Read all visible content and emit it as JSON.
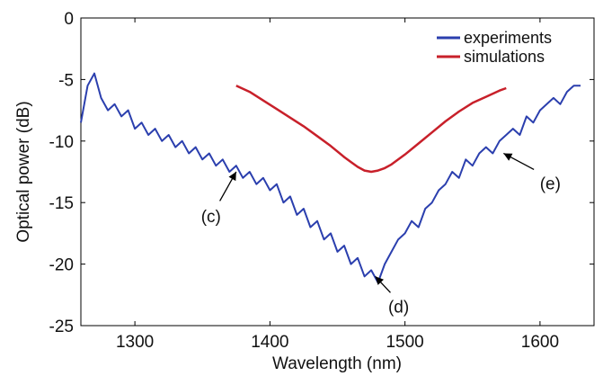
{
  "chart_data": {
    "type": "line",
    "xlabel": "Wavelength (nm)",
    "ylabel": "Optical power (dB)",
    "xlim": [
      1260,
      1640
    ],
    "ylim": [
      -25,
      0
    ],
    "xticks": [
      1300,
      1400,
      1500,
      1600
    ],
    "yticks": [
      0,
      -5,
      -10,
      -15,
      -20,
      -25
    ],
    "grid": false,
    "legend_position": "top-right",
    "series": [
      {
        "name": "experiments",
        "color": "#2b3fae",
        "x": [
          1260,
          1265,
          1270,
          1275,
          1280,
          1285,
          1290,
          1295,
          1300,
          1305,
          1310,
          1315,
          1320,
          1325,
          1330,
          1335,
          1340,
          1345,
          1350,
          1355,
          1360,
          1365,
          1370,
          1375,
          1380,
          1385,
          1390,
          1395,
          1400,
          1405,
          1410,
          1415,
          1420,
          1425,
          1430,
          1435,
          1440,
          1445,
          1450,
          1455,
          1460,
          1465,
          1470,
          1475,
          1480,
          1485,
          1490,
          1495,
          1500,
          1505,
          1510,
          1515,
          1520,
          1525,
          1530,
          1535,
          1540,
          1545,
          1550,
          1555,
          1560,
          1565,
          1570,
          1575,
          1580,
          1585,
          1590,
          1595,
          1600,
          1605,
          1610,
          1615,
          1620,
          1625,
          1630
        ],
        "y": [
          -8.5,
          -5.5,
          -4.5,
          -6.5,
          -7.5,
          -7,
          -8,
          -7.5,
          -9,
          -8.5,
          -9.5,
          -9,
          -10,
          -9.5,
          -10.5,
          -10,
          -11,
          -10.5,
          -11.5,
          -11,
          -12,
          -11.5,
          -12.5,
          -12,
          -13,
          -12.5,
          -13.5,
          -13,
          -14,
          -13.5,
          -15,
          -14.5,
          -16,
          -15.5,
          -17,
          -16.5,
          -18,
          -17.5,
          -19,
          -18.5,
          -20,
          -19.5,
          -21,
          -20.5,
          -21.5,
          -20,
          -19,
          -18,
          -17.5,
          -16.5,
          -17,
          -15.5,
          -15,
          -14,
          -13.5,
          -12.5,
          -13,
          -11.5,
          -12,
          -11,
          -10.5,
          -11,
          -10,
          -9.5,
          -9,
          -9.5,
          -8,
          -8.5,
          -7.5,
          -7,
          -6.5,
          -7,
          -6,
          -5.5,
          -5.5
        ]
      },
      {
        "name": "simulations",
        "color": "#c8202a",
        "x": [
          1375,
          1385,
          1395,
          1405,
          1415,
          1425,
          1435,
          1445,
          1455,
          1460,
          1465,
          1470,
          1475,
          1480,
          1485,
          1490,
          1495,
          1500,
          1510,
          1520,
          1530,
          1540,
          1550,
          1560,
          1570,
          1575
        ],
        "y": [
          -5.5,
          -6,
          -6.7,
          -7.4,
          -8.1,
          -8.8,
          -9.6,
          -10.4,
          -11.3,
          -11.7,
          -12.1,
          -12.4,
          -12.5,
          -12.4,
          -12.2,
          -11.9,
          -11.5,
          -11.1,
          -10.2,
          -9.3,
          -8.4,
          -7.6,
          -6.9,
          -6.4,
          -5.9,
          -5.7
        ]
      }
    ],
    "annotations": [
      {
        "label": "(c)",
        "x": 1375,
        "y": -12.5
      },
      {
        "label": "(d)",
        "x": 1478,
        "y": -21
      },
      {
        "label": "(e)",
        "x": 1573,
        "y": -11
      }
    ]
  }
}
